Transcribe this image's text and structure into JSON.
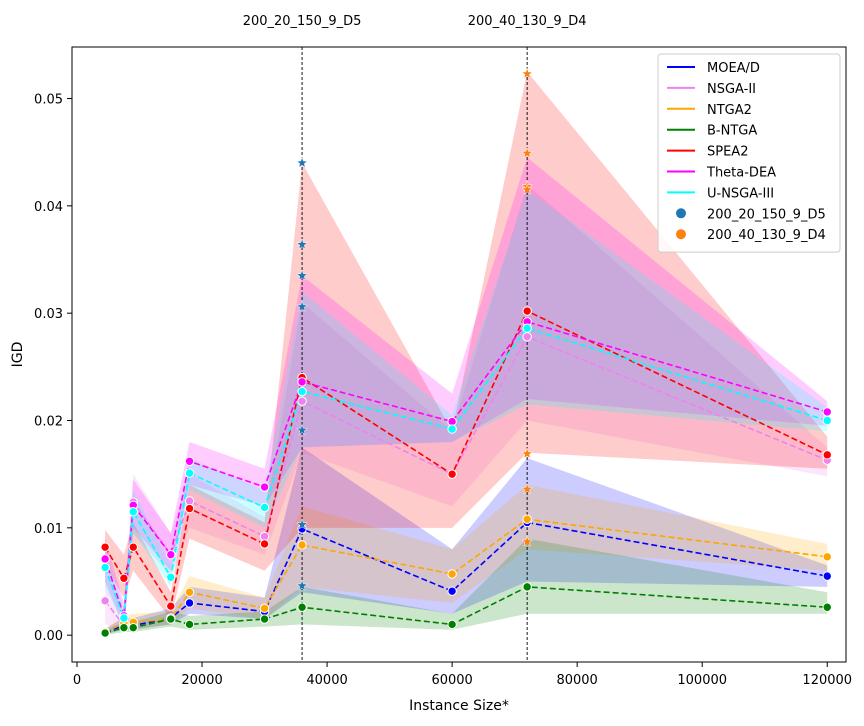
{
  "chart_data": {
    "type": "line",
    "title": "",
    "xlabel": "Instance Size*",
    "ylabel": "IGD",
    "xlim": [
      -800,
      123000
    ],
    "ylim": [
      -0.0025,
      0.0548
    ],
    "xticks": [
      0,
      20000,
      40000,
      60000,
      80000,
      100000,
      120000
    ],
    "yticks": [
      0.0,
      0.01,
      0.02,
      0.03,
      0.04,
      0.05
    ],
    "ytick_labels": [
      "0.00",
      "0.01",
      "0.02",
      "0.03",
      "0.04",
      "0.05"
    ],
    "grid": false,
    "legend_position": "top-right",
    "x": [
      4500,
      7500,
      9000,
      15000,
      18000,
      30000,
      36000,
      60000,
      72000,
      120000
    ],
    "vlines": [
      {
        "x": 36000,
        "label": "200_20_150_9_D5"
      },
      {
        "x": 72000,
        "label": "200_40_130_9_D4"
      }
    ],
    "series": [
      {
        "name": "MOEA/D",
        "color": "#0000ff",
        "values": [
          0.0003,
          0.0009,
          0.0009,
          0.0016,
          0.003,
          0.0022,
          0.0099,
          0.0041,
          0.0105,
          0.0055
        ],
        "lower": [
          0.0001,
          0.0005,
          0.0005,
          0.001,
          0.002,
          0.0015,
          0.004,
          0.002,
          0.005,
          0.0045
        ],
        "upper": [
          0.0006,
          0.0016,
          0.0016,
          0.0025,
          0.0045,
          0.0035,
          0.0175,
          0.008,
          0.0165,
          0.0065
        ]
      },
      {
        "name": "NSGA-II",
        "color": "#ee82ee",
        "values": [
          0.0032,
          0.0009,
          0.0124,
          0.0075,
          0.0125,
          0.0092,
          0.0218,
          0.015,
          0.0278,
          0.0163
        ],
        "lower": [
          0.001,
          0.0004,
          0.0095,
          0.0055,
          0.01,
          0.0075,
          0.017,
          0.012,
          0.02,
          0.0148
        ],
        "upper": [
          0.006,
          0.002,
          0.015,
          0.0095,
          0.015,
          0.011,
          0.031,
          0.019,
          0.042,
          0.0175
        ]
      },
      {
        "name": "NTGA2",
        "color": "#ffa500",
        "values": [
          0.0003,
          0.0011,
          0.0012,
          0.0015,
          0.004,
          0.0025,
          0.0084,
          0.0057,
          0.0108,
          0.0073
        ],
        "lower": [
          0.0001,
          0.0006,
          0.0006,
          0.001,
          0.0025,
          0.0015,
          0.0045,
          0.003,
          0.008,
          0.006
        ],
        "upper": [
          0.0006,
          0.0018,
          0.002,
          0.0022,
          0.0055,
          0.0035,
          0.012,
          0.008,
          0.014,
          0.0085
        ]
      },
      {
        "name": "B-NTGA",
        "color": "#008000",
        "values": [
          0.0002,
          0.0007,
          0.0007,
          0.0015,
          0.001,
          0.0015,
          0.0026,
          0.001,
          0.0045,
          0.0026
        ],
        "lower": [
          0.0,
          0.0003,
          0.0003,
          0.0008,
          0.0005,
          0.0008,
          0.001,
          0.0005,
          0.002,
          0.002
        ],
        "upper": [
          0.0005,
          0.0012,
          0.0012,
          0.0022,
          0.0018,
          0.0022,
          0.0045,
          0.002,
          0.009,
          0.004
        ]
      },
      {
        "name": "SPEA2",
        "color": "#ff0000",
        "values": [
          0.0082,
          0.0053,
          0.0082,
          0.0027,
          0.0118,
          0.0085,
          0.024,
          0.015,
          0.0302,
          0.0168
        ],
        "lower": [
          0.0065,
          0.0035,
          0.006,
          0.0015,
          0.009,
          0.006,
          0.01,
          0.01,
          0.017,
          0.0155
        ],
        "upper": [
          0.0098,
          0.0075,
          0.0105,
          0.004,
          0.014,
          0.0105,
          0.044,
          0.019,
          0.0525,
          0.0185
        ]
      },
      {
        "name": "Theta-DEA",
        "color": "#ff00ff",
        "values": [
          0.0071,
          0.0018,
          0.0121,
          0.0075,
          0.0162,
          0.0138,
          0.0236,
          0.0199,
          0.0292,
          0.0208
        ],
        "lower": [
          0.005,
          0.0008,
          0.01,
          0.006,
          0.014,
          0.012,
          0.0175,
          0.018,
          0.022,
          0.0195
        ],
        "upper": [
          0.009,
          0.003,
          0.0145,
          0.0095,
          0.018,
          0.0155,
          0.0335,
          0.0225,
          0.0445,
          0.0218
        ]
      },
      {
        "name": "U-NSGA-III",
        "color": "#00ffff",
        "values": [
          0.0063,
          0.0016,
          0.0115,
          0.0054,
          0.0151,
          0.0119,
          0.0227,
          0.0192,
          0.0286,
          0.02
        ],
        "lower": [
          0.0045,
          0.0008,
          0.0095,
          0.0045,
          0.0135,
          0.01,
          0.0175,
          0.018,
          0.0215,
          0.019
        ],
        "upper": [
          0.008,
          0.0025,
          0.0135,
          0.0065,
          0.0165,
          0.0135,
          0.032,
          0.0205,
          0.0415,
          0.0212
        ]
      }
    ],
    "markers": [
      {
        "name": "200_20_150_9_D5",
        "color": "#1f77b4",
        "x": 36000,
        "y": [
          0.044,
          0.0364,
          0.0335,
          0.0306,
          0.0191,
          0.0103,
          0.0046
        ]
      },
      {
        "name": "200_40_130_9_D4",
        "color": "#ff7f0e",
        "x": 72000,
        "y": [
          0.0523,
          0.0449,
          0.0418,
          0.0415,
          0.0169,
          0.0136,
          0.0087
        ]
      }
    ]
  }
}
